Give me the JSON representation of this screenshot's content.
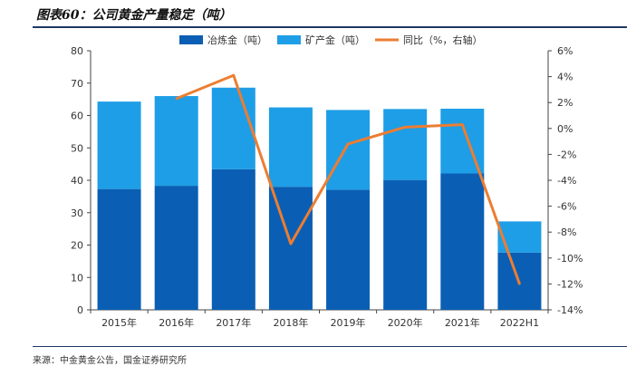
{
  "title": "图表60：公司黄金产量稳定（吨）",
  "source": "来源：中金黄金公告，国金证券研究所",
  "colors": {
    "smelted": "#0a5fb4",
    "mined": "#1e9ee6",
    "yoy": "#ed7d31"
  },
  "chart_data": {
    "type": "bar",
    "stacked": true,
    "categories": [
      "2015年",
      "2016年",
      "2017年",
      "2018年",
      "2019年",
      "2020年",
      "2021年",
      "2022H1"
    ],
    "series": [
      {
        "name": "冶炼金（吨）",
        "type": "bar",
        "axis": "left",
        "values": [
          37.3,
          38.3,
          43.4,
          38.0,
          37.1,
          40.1,
          42.1,
          17.7
        ]
      },
      {
        "name": "矿产金（吨）",
        "type": "bar",
        "axis": "left",
        "values": [
          27.0,
          27.7,
          25.2,
          24.5,
          24.6,
          21.9,
          20.0,
          9.6
        ]
      },
      {
        "name": "同比（%，右轴）",
        "type": "line",
        "axis": "right",
        "values": [
          null,
          2.3,
          4.1,
          -8.9,
          -1.2,
          0.1,
          0.3,
          -12.0
        ]
      }
    ],
    "y_left": {
      "min": 0,
      "max": 80,
      "step": 10,
      "ticks": [
        "0",
        "10",
        "20",
        "30",
        "40",
        "50",
        "60",
        "70",
        "80"
      ]
    },
    "y_right": {
      "min": -14,
      "max": 6,
      "step": 2,
      "ticks": [
        "-14%",
        "-12%",
        "-10%",
        "-8%",
        "-6%",
        "-4%",
        "-2%",
        "0%",
        "2%",
        "4%",
        "6%"
      ]
    },
    "legend_position": "top",
    "grid": false
  }
}
